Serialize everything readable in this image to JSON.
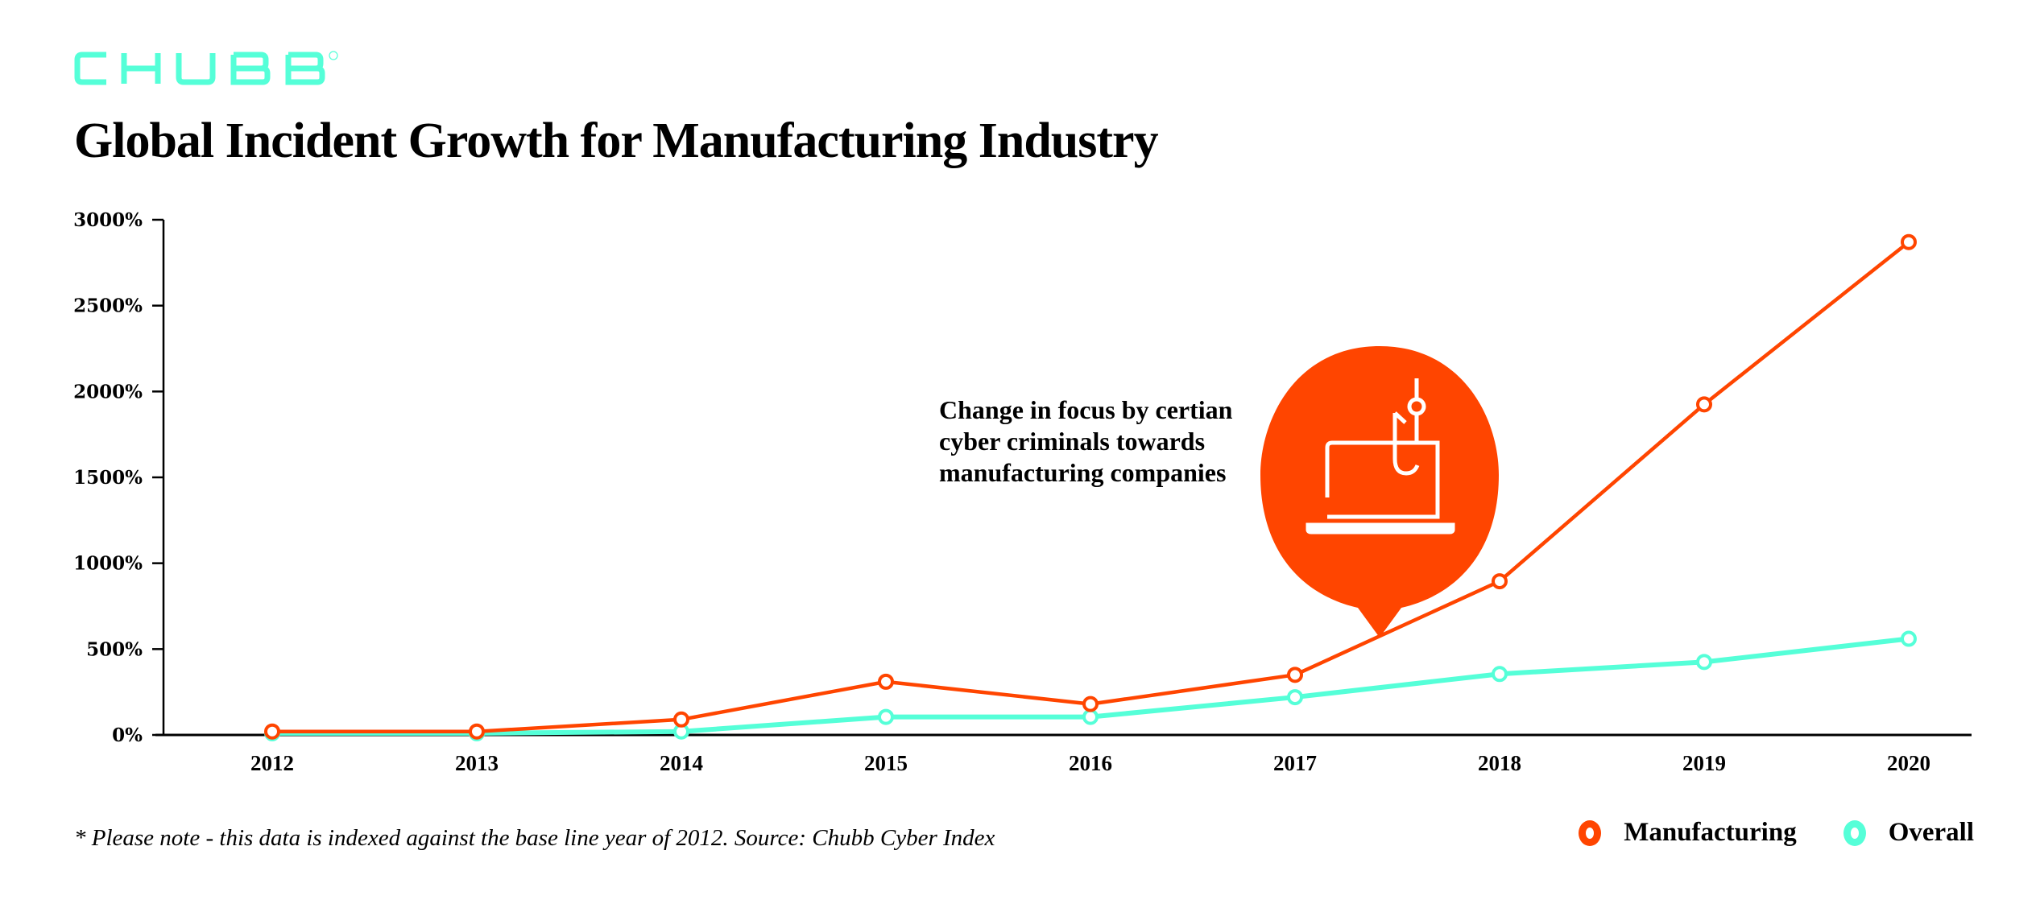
{
  "brand": {
    "logo_text": "CHUBB",
    "registered_mark": "®",
    "logo_color": "#55FFD8"
  },
  "title": "Global Incident Growth for Manufacturing Industry",
  "callout": {
    "text": "Change in focus by certian cyber criminals towards manufacturing companies",
    "icon": "laptop-phishing-hook-icon",
    "bubble_color": "#FF4500"
  },
  "footnote": "* Please note - this data is indexed against the base line year of 2012. Source: Chubb Cyber Index",
  "legend": {
    "items": [
      {
        "label": "Manufacturing",
        "color": "#FF4500"
      },
      {
        "label": "Overall",
        "color": "#55FFD8"
      }
    ]
  },
  "chart_data": {
    "type": "line",
    "title": "Global Incident Growth for Manufacturing Industry",
    "xlabel": "",
    "ylabel": "",
    "categories": [
      "2012",
      "2013",
      "2014",
      "2015",
      "2016",
      "2017",
      "2018",
      "2019",
      "2020"
    ],
    "yticks": [
      0,
      500,
      1000,
      1500,
      2000,
      2500,
      3000
    ],
    "ytick_labels": [
      "0%",
      "500%",
      "1000%",
      "1500%",
      "2000%",
      "2500%",
      "3000%"
    ],
    "ylim": [
      0,
      3000
    ],
    "grid": false,
    "legend_position": "bottom-right",
    "series": [
      {
        "name": "Manufacturing",
        "color": "#FF4500",
        "values": [
          20,
          20,
          90,
          310,
          180,
          350,
          895,
          1925,
          2870
        ]
      },
      {
        "name": "Overall",
        "color": "#55FFD8",
        "values": [
          10,
          10,
          20,
          105,
          105,
          220,
          355,
          425,
          560
        ]
      }
    ],
    "annotations": [
      {
        "text": "Change in focus by certian cyber criminals towards manufacturing companies",
        "near": "between 2017 and 2018"
      }
    ]
  }
}
